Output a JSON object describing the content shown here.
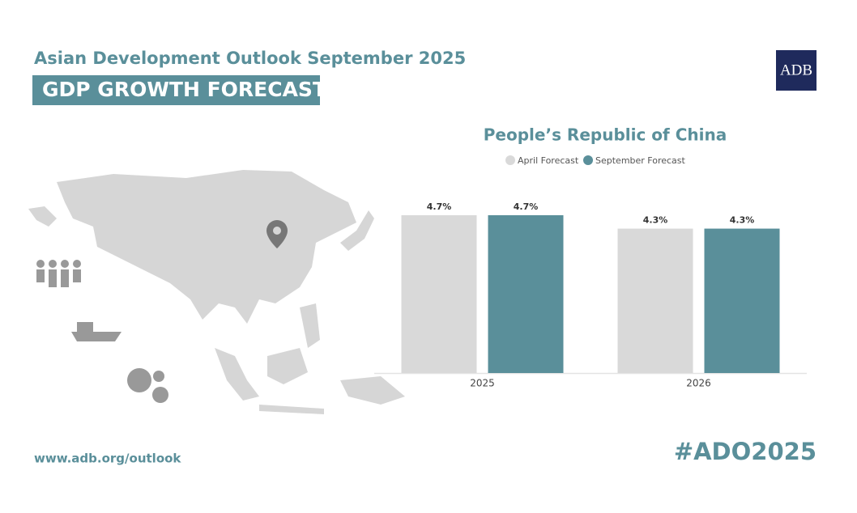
{
  "header": {
    "title": "Asian Development Outlook September 2025",
    "banner": "GDP GROWTH FORECAST",
    "logo": "ADB"
  },
  "chart_data": {
    "type": "bar",
    "title": "People’s Republic of China",
    "categories": [
      "2025",
      "2026"
    ],
    "series": [
      {
        "name": "April Forecast",
        "color": "#d9d9d9",
        "values": [
          4.7,
          4.3
        ],
        "value_labels": [
          "4.7%",
          "4.3%"
        ]
      },
      {
        "name": "September Forecast",
        "color": "#5a8f9a",
        "values": [
          4.7,
          4.3
        ],
        "value_labels": [
          "4.7%",
          "4.3%"
        ]
      }
    ]
  },
  "footer": {
    "url": "www.adb.org/outlook",
    "hashtag": "#ADO2025"
  }
}
